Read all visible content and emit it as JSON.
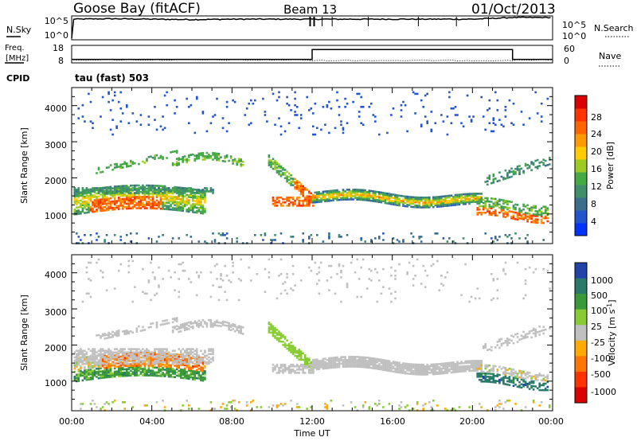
{
  "header": {
    "station": "Goose Bay (fitACF)",
    "beam": "Beam 13",
    "date": "01/Oct/2013"
  },
  "noise_panel": {
    "left_label": "N.Sky",
    "right_label": "N.Search",
    "left_ticks": [
      "10^5",
      "10^0"
    ],
    "right_ticks": [
      "10^5",
      "10^0"
    ]
  },
  "freq_panel": {
    "left_label_line1": "Freq.",
    "left_label_line2": "[MHz]",
    "right_label": "Nave",
    "left_ticks": [
      "18",
      "8"
    ],
    "right_ticks": [
      "60",
      "0"
    ]
  },
  "cpid_panel": {
    "label": "CPID",
    "text": "tau (fast) 503"
  },
  "power_panel": {
    "ylabel": "Slant Range [km]",
    "yticks": [
      "4000",
      "3000",
      "2000",
      "1000"
    ],
    "colorbar_label": "Power [dB]",
    "colorbar_ticks": [
      "28",
      "24",
      "20",
      "16",
      "12",
      "8",
      "4"
    ]
  },
  "velocity_panel": {
    "ylabel": "Slant Range [km]",
    "yticks": [
      "4000",
      "3000",
      "2000",
      "1000"
    ],
    "colorbar_label": "Velocity [m s",
    "colorbar_label_sup": "-1",
    "colorbar_label_end": "]",
    "colorbar_ticks": [
      "1000",
      "500",
      "100",
      "25",
      "-25",
      "-100",
      "-500",
      "-1000"
    ]
  },
  "xaxis": {
    "label": "Time UT",
    "ticks": [
      "00:00",
      "04:00",
      "08:00",
      "12:00",
      "16:00",
      "20:00",
      "00:00"
    ]
  },
  "chart_data": [
    {
      "type": "line",
      "name": "noise",
      "x_hours": [
        0,
        2,
        4,
        6,
        8,
        10,
        12,
        14,
        16,
        18,
        20,
        22,
        24
      ],
      "series": [
        {
          "values_log10": [
            4.6,
            4.7,
            4.6,
            4.5,
            4.6,
            4.6,
            4.6,
            4.6,
            4.6,
            4.6,
            4.6,
            5.0,
            5.0
          ]
        }
      ],
      "ylim_log10": [
        0,
        5
      ]
    },
    {
      "type": "line",
      "name": "frequency",
      "x_hours": [
        0,
        12,
        12,
        22,
        22,
        24
      ],
      "series": [
        {
          "values": [
            10,
            10,
            15.6,
            15.6,
            10,
            10
          ]
        }
      ],
      "ylim": [
        8,
        18
      ]
    },
    {
      "type": "heatmap",
      "name": "power",
      "xlim_hours": [
        0,
        24
      ],
      "ylim_km": [
        180,
        4500
      ],
      "color_range_db": [
        0,
        30
      ]
    },
    {
      "type": "heatmap",
      "name": "velocity",
      "xlim_hours": [
        0,
        24
      ],
      "ylim_km": [
        180,
        4500
      ],
      "color_range": [
        -1000,
        1000
      ]
    }
  ]
}
